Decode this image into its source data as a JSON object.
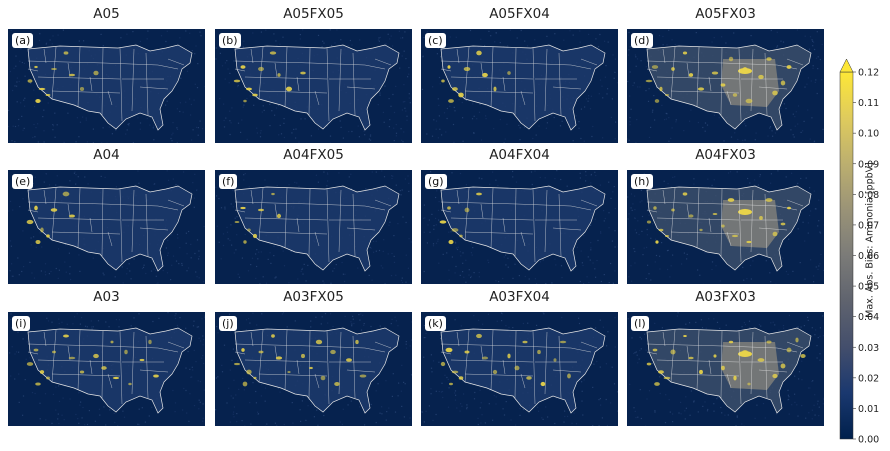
{
  "panels": [
    {
      "title": "A05",
      "letter": "(a)",
      "intensity": 0.0,
      "hotspots": 0.35,
      "midwest_patch": 0
    },
    {
      "title": "A05FX05",
      "letter": "(b)",
      "intensity": 0.0,
      "hotspots": 0.35,
      "midwest_patch": 0
    },
    {
      "title": "A05FX04",
      "letter": "(c)",
      "intensity": 0.0,
      "hotspots": 0.35,
      "midwest_patch": 0
    },
    {
      "title": "A05FX03",
      "letter": "(d)",
      "intensity": 0.3,
      "hotspots": 0.7,
      "midwest_patch": 1
    },
    {
      "title": "A04",
      "letter": "(e)",
      "intensity": 0.0,
      "hotspots": 0.3,
      "midwest_patch": 0
    },
    {
      "title": "A04FX05",
      "letter": "(f)",
      "intensity": 0.0,
      "hotspots": 0.3,
      "midwest_patch": 0
    },
    {
      "title": "A04FX04",
      "letter": "(g)",
      "intensity": 0.0,
      "hotspots": 0.25,
      "midwest_patch": 0
    },
    {
      "title": "A04FX03",
      "letter": "(h)",
      "intensity": 0.3,
      "hotspots": 0.7,
      "midwest_patch": 1
    },
    {
      "title": "A03",
      "letter": "(i)",
      "intensity": 0.1,
      "hotspots": 0.65,
      "midwest_patch": 0
    },
    {
      "title": "A03FX05",
      "letter": "(j)",
      "intensity": 0.1,
      "hotspots": 0.65,
      "midwest_patch": 0
    },
    {
      "title": "A03FX04",
      "letter": "(k)",
      "intensity": 0.1,
      "hotspots": 0.65,
      "midwest_patch": 0
    },
    {
      "title": "A03FX03",
      "letter": "(l)",
      "intensity": 0.35,
      "hotspots": 0.8,
      "midwest_patch": 1
    }
  ],
  "colorbar": {
    "label": "Max. Abs. Bias: Ammonia [ppbV]",
    "min": 0.0,
    "max": 0.12,
    "extend": "max",
    "ticks": [
      "0.00",
      "0.01",
      "0.02",
      "0.03",
      "0.04",
      "0.05",
      "0.06",
      "0.07",
      "0.08",
      "0.09",
      "0.10",
      "0.11",
      "0.12"
    ],
    "colors": [
      "#00204c",
      "#1a386f",
      "#434e6c",
      "#5f636e",
      "#7b7b78",
      "#9a9377",
      "#bcaf6f",
      "#dfcb5d",
      "#fde737"
    ]
  },
  "map_style": {
    "background": "#06224e",
    "border_color": "#e6e6e6",
    "hotspot_color": "#e8d34a"
  }
}
